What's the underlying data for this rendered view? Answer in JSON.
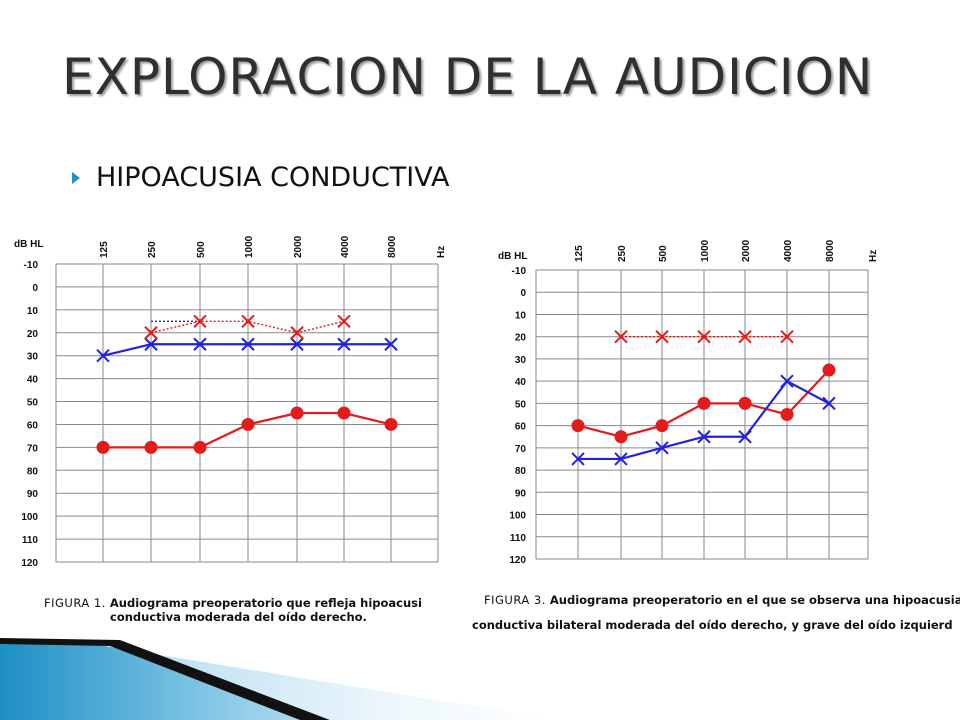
{
  "slide": {
    "title": "EXPLORACION DE LA AUDICION",
    "bullet": "HIPOACUSIA CONDUCTIVA"
  },
  "chart_data": [
    {
      "type": "line",
      "x": [
        "125",
        "250",
        "500",
        "1000",
        "2000",
        "4000",
        "8000"
      ],
      "x_unit": "Hz",
      "y_unit": "dB HL",
      "yticks": [
        -10,
        0,
        10,
        20,
        30,
        40,
        50,
        60,
        70,
        80,
        90,
        100,
        110,
        120
      ],
      "ylim": [
        -10,
        120
      ],
      "y_inverted": true,
      "grid": true,
      "series": [
        {
          "color": "#e31b1b",
          "marker": "circle",
          "line": "solid",
          "values": [
            70,
            70,
            70,
            60,
            55,
            55,
            60
          ]
        },
        {
          "color": "#2222dd",
          "marker": "x",
          "line": "solid",
          "values": [
            30,
            25,
            25,
            25,
            25,
            25,
            25
          ]
        },
        {
          "color": "#e31b1b",
          "marker": "x",
          "line": "dotted",
          "values": [
            null,
            20,
            15,
            15,
            20,
            15,
            null
          ]
        },
        {
          "color": "#2222dd",
          "marker": "none",
          "line": "dotted",
          "values": [
            null,
            15,
            15,
            null,
            null,
            null,
            null
          ]
        }
      ],
      "caption_label": "FIGURA 1.",
      "caption_line1": "Audiograma preoperatorio que refleja hipoacusi",
      "caption_line2": "conductiva moderada del oído derecho."
    },
    {
      "type": "line",
      "x": [
        "125",
        "250",
        "500",
        "1000",
        "2000",
        "4000",
        "8000"
      ],
      "x_unit": "Hz",
      "y_unit": "dB HL",
      "yticks": [
        -10,
        0,
        10,
        20,
        30,
        40,
        50,
        60,
        70,
        80,
        90,
        100,
        110,
        120
      ],
      "ylim": [
        -10,
        120
      ],
      "y_inverted": true,
      "grid": true,
      "series": [
        {
          "color": "#e31b1b",
          "marker": "circle",
          "line": "solid",
          "values": [
            60,
            65,
            60,
            50,
            50,
            55,
            35
          ]
        },
        {
          "color": "#2222dd",
          "marker": "x",
          "line": "solid",
          "values": [
            75,
            75,
            70,
            65,
            65,
            40,
            50
          ]
        },
        {
          "color": "#e31b1b",
          "marker": "x",
          "line": "dotted",
          "values": [
            null,
            20,
            20,
            20,
            20,
            20,
            null
          ]
        }
      ],
      "caption_label": "FIGURA 3.",
      "caption_line1": "Audiograma preoperatorio en el que se observa una hipoacusia",
      "caption_line2": "conductiva bilateral moderada del oído derecho, y grave del oído izquierd"
    }
  ]
}
